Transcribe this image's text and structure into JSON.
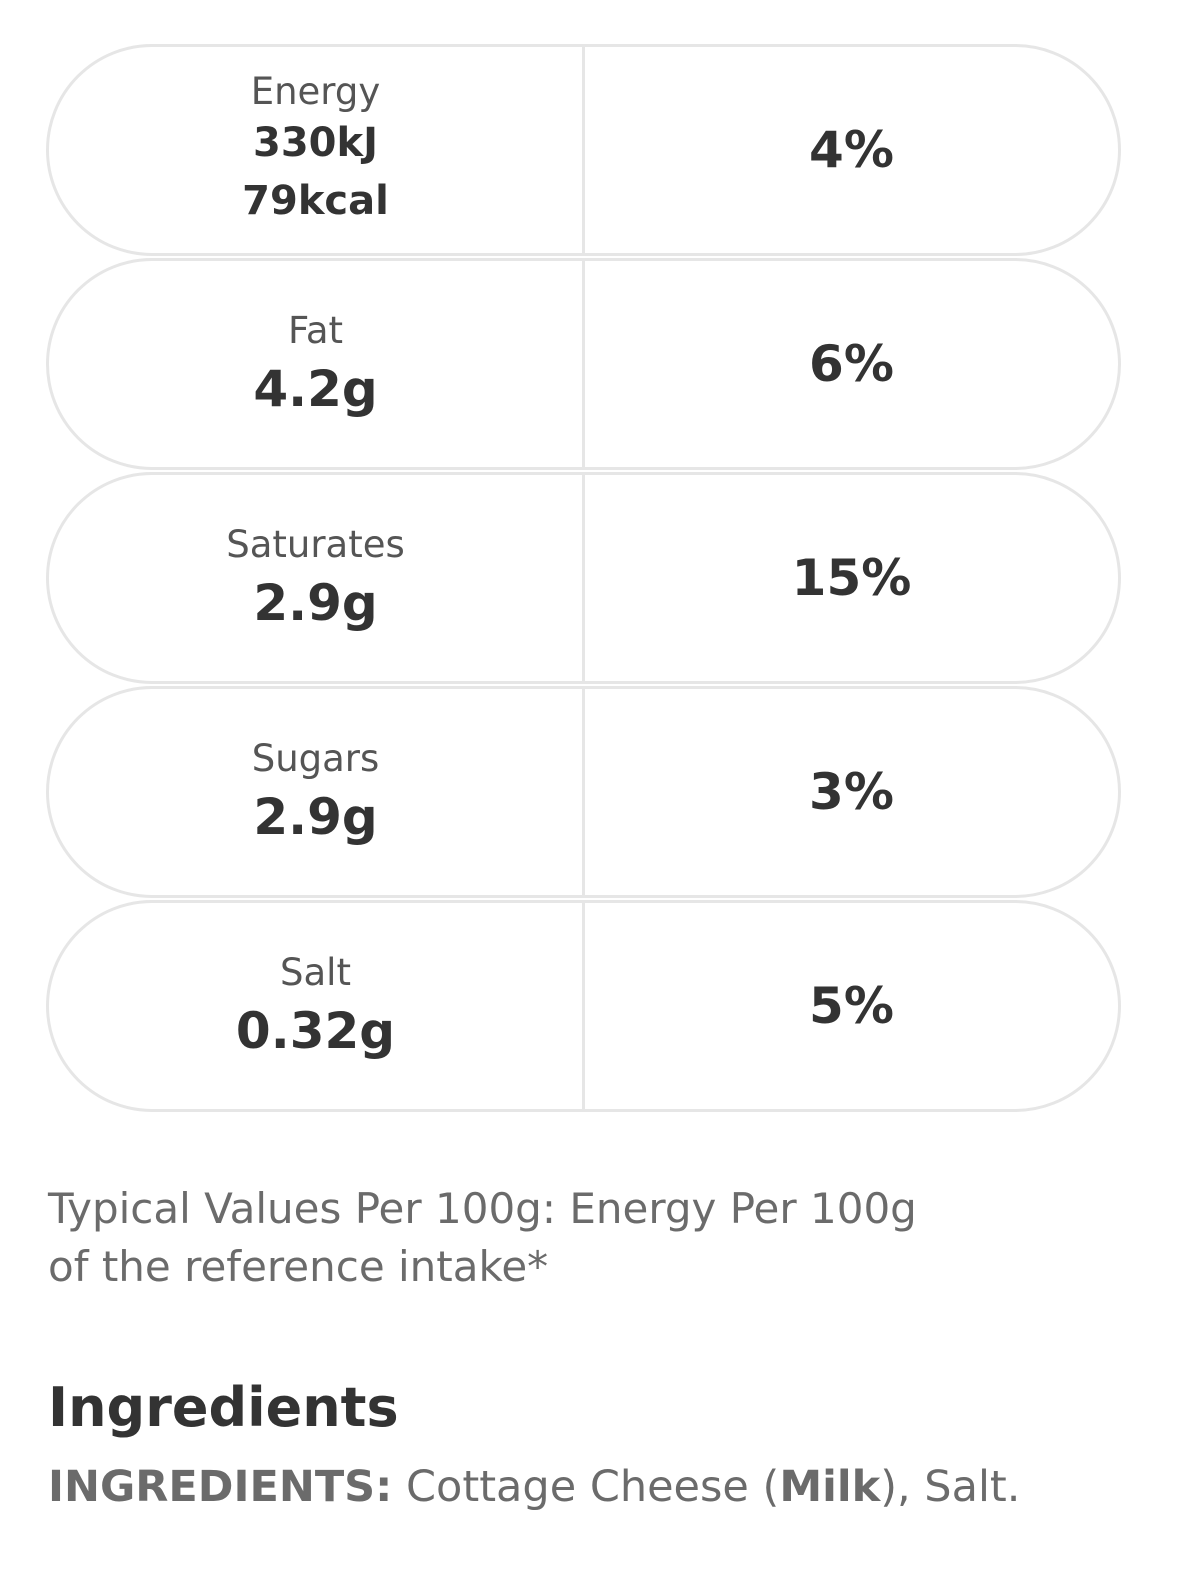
{
  "nutrition": {
    "rows": [
      {
        "name": "Energy",
        "values": [
          "330kJ",
          "79kcal"
        ],
        "percent": "4%"
      },
      {
        "name": "Fat",
        "values": [
          "4.2g"
        ],
        "percent": "6%"
      },
      {
        "name": "Saturates",
        "values": [
          "2.9g"
        ],
        "percent": "15%"
      },
      {
        "name": "Sugars",
        "values": [
          "2.9g"
        ],
        "percent": "3%"
      },
      {
        "name": "Salt",
        "values": [
          "0.32g"
        ],
        "percent": "5%"
      }
    ],
    "footnote": "Typical Values Per 100g: Energy Per 100g of the reference intake*"
  },
  "ingredients": {
    "heading": "Ingredients",
    "label": "INGREDIENTS:",
    "text_before": " Cottage Cheese (",
    "allergen": "Milk",
    "text_after": "), Salt."
  }
}
